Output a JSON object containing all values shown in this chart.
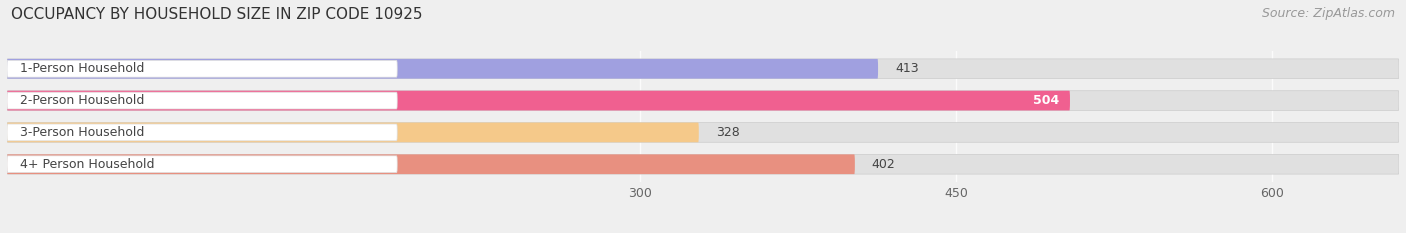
{
  "title": "OCCUPANCY BY HOUSEHOLD SIZE IN ZIP CODE 10925",
  "source": "Source: ZipAtlas.com",
  "categories": [
    "1-Person Household",
    "2-Person Household",
    "3-Person Household",
    "4+ Person Household"
  ],
  "values": [
    413,
    504,
    328,
    402
  ],
  "bar_colors": [
    "#a0a0e0",
    "#f06090",
    "#f5c98a",
    "#e89080"
  ],
  "xlim_data": [
    0,
    660
  ],
  "xticks": [
    300,
    450,
    600
  ],
  "background_color": "#efefef",
  "bar_bg_color": "#e0e0e0",
  "label_white_bg": "#ffffff",
  "label_color_dark": "#444444",
  "label_color_light": "#ffffff",
  "title_fontsize": 11,
  "source_fontsize": 9,
  "tick_fontsize": 9,
  "bar_label_fontsize": 9,
  "cat_label_fontsize": 9
}
